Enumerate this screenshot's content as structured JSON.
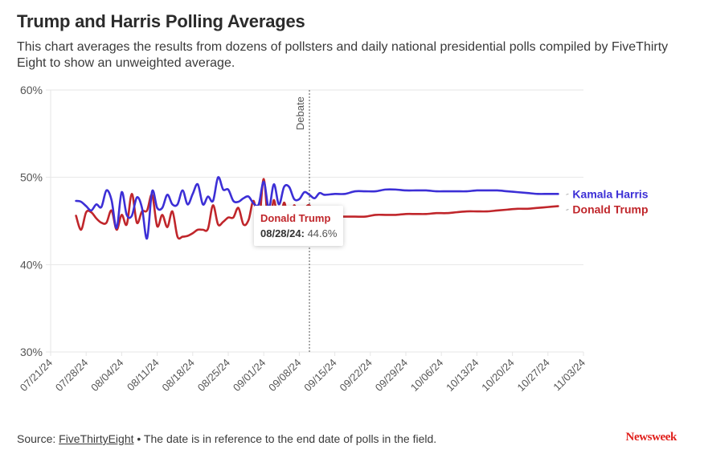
{
  "header": {
    "title": "Trump and Harris Polling Averages",
    "subtitle": "This chart averages the results from dozens of pollsters and daily national presidential polls compiled by FiveThirty Eight to show an unweighted average."
  },
  "tooltip": {
    "series": "Donald Trump",
    "date": "08/28/24:",
    "value": "44.6%"
  },
  "footer": {
    "source_label": "Source:",
    "source_link": "FiveThirtyEight",
    "note": "• The date is in reference to the end date of polls in the field.",
    "brand": "Newsweek"
  },
  "colors": {
    "harris": "#3c2fd6",
    "trump": "#c0262b"
  },
  "chart_data": {
    "type": "line",
    "title": "Trump and Harris Polling Averages",
    "xlabel": "",
    "ylabel": "",
    "ylim": [
      30,
      60
    ],
    "yticks": [
      "30%",
      "40%",
      "50%",
      "60%"
    ],
    "ytick_values": [
      30,
      40,
      50,
      60
    ],
    "xlim": [
      "07/21/24",
      "11/03/24"
    ],
    "xticks": [
      "07/21/24",
      "07/28/24",
      "08/04/24",
      "08/11/24",
      "08/18/24",
      "08/25/24",
      "09/01/24",
      "09/08/24",
      "09/15/24",
      "09/22/24",
      "09/29/24",
      "10/06/24",
      "10/13/24",
      "10/20/24",
      "10/27/24",
      "11/03/24"
    ],
    "grid": true,
    "annotations": [
      {
        "type": "vertical-line",
        "date": "09/10/24",
        "label": "Debate"
      }
    ],
    "legend": "right-end-labels",
    "x_start_date": "07/21/24",
    "x_days": [
      5,
      6,
      7,
      8,
      9,
      10,
      11,
      12,
      13,
      14,
      15,
      16,
      17,
      18,
      19,
      20,
      21,
      22,
      23,
      24,
      25,
      26,
      27,
      28,
      29,
      30,
      31,
      32,
      33,
      34,
      35,
      36,
      37,
      38,
      39,
      40,
      41,
      42,
      43,
      44,
      45,
      46,
      47,
      48,
      49,
      50,
      51,
      52,
      53,
      54,
      56,
      58,
      60,
      62,
      64,
      66,
      68,
      70,
      72,
      74,
      76,
      78,
      80,
      82,
      84,
      86,
      88,
      90,
      92,
      94,
      96,
      98,
      100
    ],
    "series": [
      {
        "name": "Kamala Harris",
        "values": [
          47.3,
          47.2,
          46.7,
          46.2,
          46.9,
          46.6,
          48.5,
          47.4,
          44.2,
          48.3,
          45.7,
          45.6,
          47.7,
          46.5,
          43.0,
          48.4,
          46.5,
          46.5,
          48.0,
          46.9,
          46.9,
          48.5,
          46.9,
          48.1,
          49.2,
          46.9,
          47.8,
          47.3,
          50.0,
          48.6,
          48.6,
          47.3,
          47.2,
          47.6,
          47.8,
          47.0,
          46.9,
          49.5,
          46.5,
          49.2,
          46.9,
          48.9,
          48.9,
          47.5,
          47.5,
          48.3,
          48.0,
          47.6,
          48.2,
          48.0,
          48.1,
          48.1,
          48.4,
          48.4,
          48.4,
          48.6,
          48.6,
          48.5,
          48.5,
          48.5,
          48.4,
          48.4,
          48.4,
          48.4,
          48.5,
          48.5,
          48.5,
          48.4,
          48.3,
          48.2,
          48.1,
          48.1,
          48.1
        ]
      },
      {
        "name": "Donald Trump",
        "values": [
          45.6,
          44.0,
          46.0,
          46.0,
          45.3,
          44.8,
          44.8,
          46.2,
          44.0,
          45.7,
          44.6,
          48.1,
          44.8,
          46.1,
          46.2,
          48.0,
          44.4,
          45.7,
          44.3,
          46.1,
          43.2,
          43.2,
          43.3,
          43.6,
          44.0,
          44.0,
          44.1,
          46.8,
          44.6,
          44.9,
          45.4,
          45.4,
          46.5,
          44.6,
          45.1,
          47.3,
          44.6,
          49.8,
          44.0,
          47.4,
          44.0,
          47.1,
          44.6,
          46.8,
          45.1,
          46.3,
          46.8,
          45.6,
          45.5,
          45.5,
          45.5,
          45.5,
          45.5,
          45.5,
          45.7,
          45.7,
          45.7,
          45.8,
          45.8,
          45.8,
          45.9,
          45.9,
          46.0,
          46.1,
          46.1,
          46.1,
          46.2,
          46.3,
          46.4,
          46.4,
          46.5,
          46.6,
          46.7
        ]
      }
    ]
  }
}
